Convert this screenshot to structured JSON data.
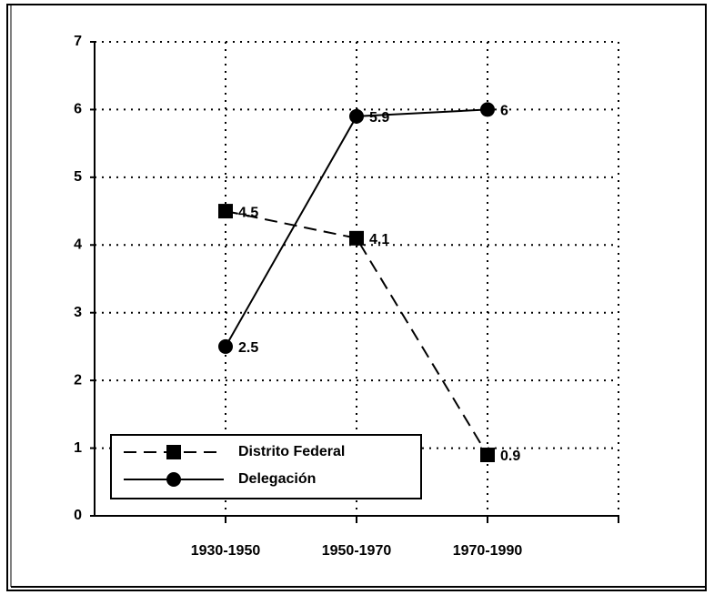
{
  "chart_data": {
    "type": "line",
    "categories": [
      "1930-1950",
      "1950-1970",
      "1970-1990"
    ],
    "series": [
      {
        "name": "Distrito Federal",
        "color": "#000000",
        "values": [
          4.5,
          4.1,
          0.9
        ]
      },
      {
        "name": "Delegación",
        "color": "#000000",
        "values": [
          2.5,
          5.9,
          6
        ]
      }
    ],
    "ylim": [
      0,
      7
    ],
    "yticks": [
      0,
      1,
      2,
      3,
      4,
      5,
      6,
      7
    ],
    "grid": true,
    "legend": "lower left"
  }
}
